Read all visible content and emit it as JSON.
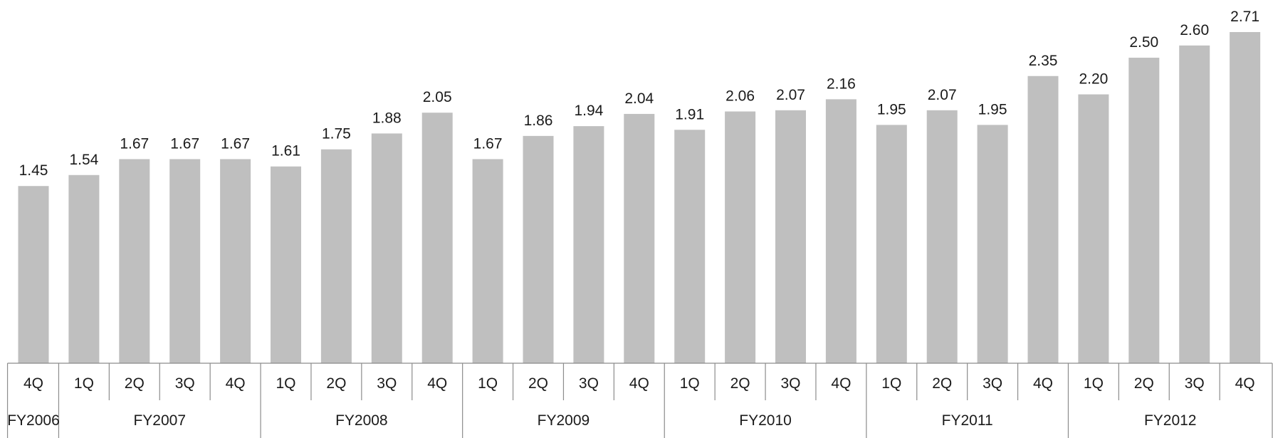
{
  "chart_data": {
    "type": "bar",
    "title": "",
    "xlabel": "",
    "ylabel": "",
    "ylim": [
      0,
      2.71
    ],
    "bar_color": "#bfbfbf",
    "categories": [
      "4Q",
      "1Q",
      "2Q",
      "3Q",
      "4Q",
      "1Q",
      "2Q",
      "3Q",
      "4Q",
      "1Q",
      "2Q",
      "3Q",
      "4Q",
      "1Q",
      "2Q",
      "3Q",
      "4Q",
      "1Q",
      "2Q",
      "3Q",
      "4Q",
      "1Q",
      "2Q",
      "3Q",
      "4Q"
    ],
    "values": [
      1.45,
      1.54,
      1.67,
      1.67,
      1.67,
      1.61,
      1.75,
      1.88,
      2.05,
      1.67,
      1.86,
      1.94,
      2.04,
      1.91,
      2.06,
      2.07,
      2.16,
      1.95,
      2.07,
      1.95,
      2.35,
      2.2,
      2.5,
      2.6,
      2.71
    ],
    "value_labels": [
      "1.45",
      "1.54",
      "1.67",
      "1.67",
      "1.67",
      "1.61",
      "1.75",
      "1.88",
      "2.05",
      "1.67",
      "1.86",
      "1.94",
      "2.04",
      "1.91",
      "2.06",
      "2.07",
      "2.16",
      "1.95",
      "2.07",
      "1.95",
      "2.35",
      "2.20",
      "2.50",
      "2.60",
      "2.71"
    ],
    "groups": [
      {
        "label": "FY2006",
        "count": 1
      },
      {
        "label": "FY2007",
        "count": 4
      },
      {
        "label": "FY2008",
        "count": 4
      },
      {
        "label": "FY2009",
        "count": 4
      },
      {
        "label": "FY2010",
        "count": 4
      },
      {
        "label": "FY2011",
        "count": 4
      },
      {
        "label": "FY2012",
        "count": 4
      }
    ]
  }
}
